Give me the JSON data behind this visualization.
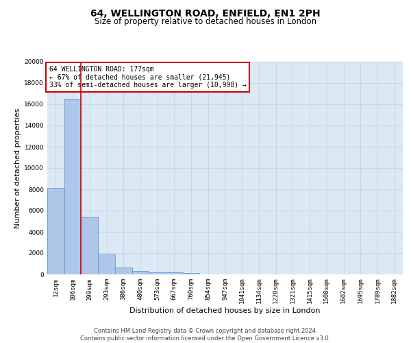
{
  "title": "64, WELLINGTON ROAD, ENFIELD, EN1 2PH",
  "subtitle": "Size of property relative to detached houses in London",
  "xlabel": "Distribution of detached houses by size in London",
  "ylabel": "Number of detached properties",
  "categories": [
    "12sqm",
    "106sqm",
    "199sqm",
    "293sqm",
    "386sqm",
    "480sqm",
    "573sqm",
    "667sqm",
    "760sqm",
    "854sqm",
    "947sqm",
    "1041sqm",
    "1134sqm",
    "1228sqm",
    "1321sqm",
    "1415sqm",
    "1508sqm",
    "1602sqm",
    "1695sqm",
    "1789sqm",
    "1882sqm"
  ],
  "bar_heights": [
    8100,
    16500,
    5400,
    1850,
    650,
    300,
    200,
    180,
    150,
    0,
    0,
    0,
    0,
    0,
    0,
    0,
    0,
    0,
    0,
    0,
    0
  ],
  "bar_color": "#aec6e8",
  "bar_edge_color": "#5b9bd5",
  "annotation_line1": "64 WELLINGTON ROAD: 177sqm",
  "annotation_line2": "← 67% of detached houses are smaller (21,945)",
  "annotation_line3": "33% of semi-detached houses are larger (10,998) →",
  "annotation_box_edgecolor": "#cc0000",
  "vline_color": "#cc0000",
  "vline_x": 1.5,
  "ylim": [
    0,
    20000
  ],
  "yticks": [
    0,
    2000,
    4000,
    6000,
    8000,
    10000,
    12000,
    14000,
    16000,
    18000,
    20000
  ],
  "grid_color": "#c5d8ea",
  "bg_color": "#dce9f5",
  "footer_line1": "Contains HM Land Registry data © Crown copyright and database right 2024.",
  "footer_line2": "Contains public sector information licensed under the Open Government Licence v3.0.",
  "title_fontsize": 10,
  "subtitle_fontsize": 8.5,
  "axis_label_fontsize": 8,
  "tick_fontsize": 6.5,
  "annotation_fontsize": 7,
  "footer_fontsize": 6
}
